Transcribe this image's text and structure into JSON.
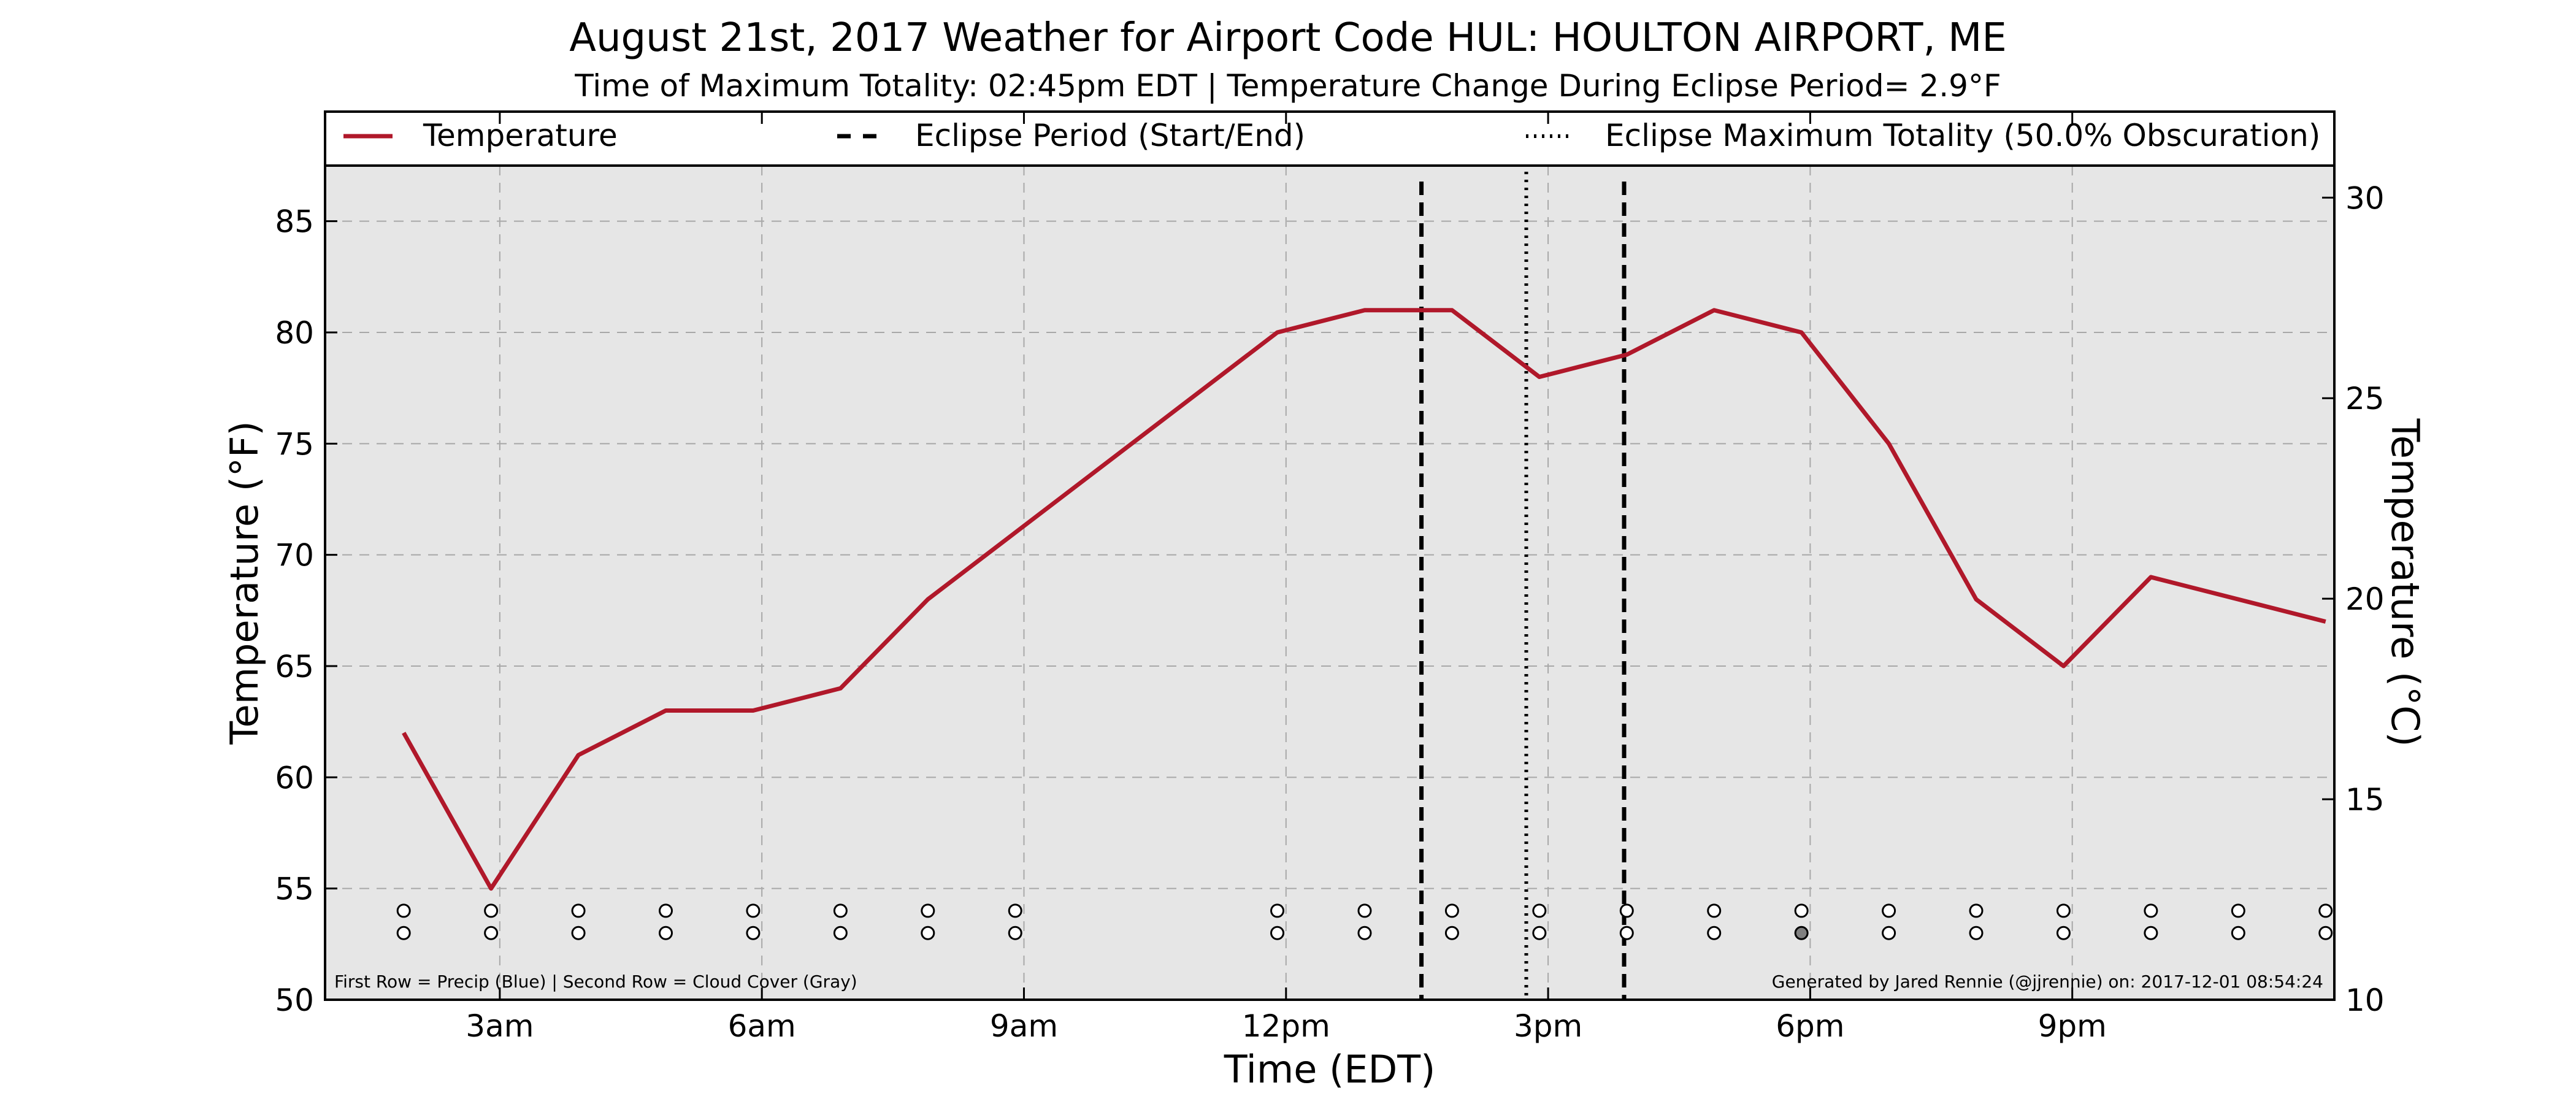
{
  "header": {
    "title": "August 21st, 2017 Weather for Airport Code HUL: HOULTON AIRPORT, ME",
    "subtitle": "Time of Maximum Totality: 02:45pm EDT | Temperature Change During Eclipse Period= 2.9°F"
  },
  "chart_data": {
    "type": "line",
    "xlabel": "Time (EDT)",
    "ylabel": "Temperature (°F)",
    "ylabel_right": "Temperature (°C)",
    "xlim_hours": [
      1.0,
      24.0
    ],
    "ylim": [
      50,
      87.5
    ],
    "ylim_right": [
      10,
      30.8
    ],
    "x_tick_values": [
      3,
      6,
      9,
      12,
      15,
      18,
      21
    ],
    "x_tick_labels": [
      "3am",
      "6am",
      "9am",
      "12pm",
      "3pm",
      "6pm",
      "9pm"
    ],
    "y_ticks": [
      50,
      55,
      60,
      65,
      70,
      75,
      80,
      85
    ],
    "y_ticks_right": [
      10,
      15,
      20,
      25,
      30
    ],
    "grid": true,
    "legend_placement": "top",
    "legend": {
      "temperature": "Temperature",
      "eclipse_period": "Eclipse Period (Start/End)",
      "max_totality": "Eclipse Maximum Totality (50.0% Obscuration)"
    },
    "series": [
      {
        "name": "Temperature",
        "color": "#b0182a",
        "x": [
          1.9,
          2.9,
          3.9,
          4.9,
          5.9,
          6.9,
          7.9,
          8.9,
          11.9,
          12.9,
          13.9,
          14.9,
          15.9,
          16.9,
          17.9,
          18.9,
          19.9,
          20.9,
          21.9,
          23.9
        ],
        "y": [
          62,
          55,
          61,
          63,
          63,
          64,
          68,
          71,
          80,
          81,
          81,
          78,
          79,
          81,
          80,
          75,
          68,
          65,
          69,
          67
        ]
      }
    ],
    "eclipse_start_hour": 13.55,
    "eclipse_end_hour": 15.87,
    "max_totality_hour": 14.75,
    "observation_hours": [
      1.9,
      2.9,
      3.9,
      4.9,
      5.9,
      6.9,
      7.9,
      8.9,
      11.9,
      12.9,
      13.9,
      14.9,
      15.9,
      16.9,
      17.9,
      18.9,
      19.9,
      20.9,
      21.9,
      22.9,
      23.9
    ],
    "precip_marker_y": 54,
    "cloud_marker_y": 53,
    "cloud_filled_hours": [
      17.9
    ],
    "footnote_left": "First Row = Precip (Blue) | Second Row = Cloud Cover (Gray)",
    "footnote_right": "Generated by Jared Rennie (@jjrennie) on: 2017-12-01 08:54:24"
  },
  "colors": {
    "plot_background": "#e6e6e6",
    "temperature_line": "#b0182a",
    "grid": "#a8a8a8",
    "cloud_filled": "#808080"
  }
}
